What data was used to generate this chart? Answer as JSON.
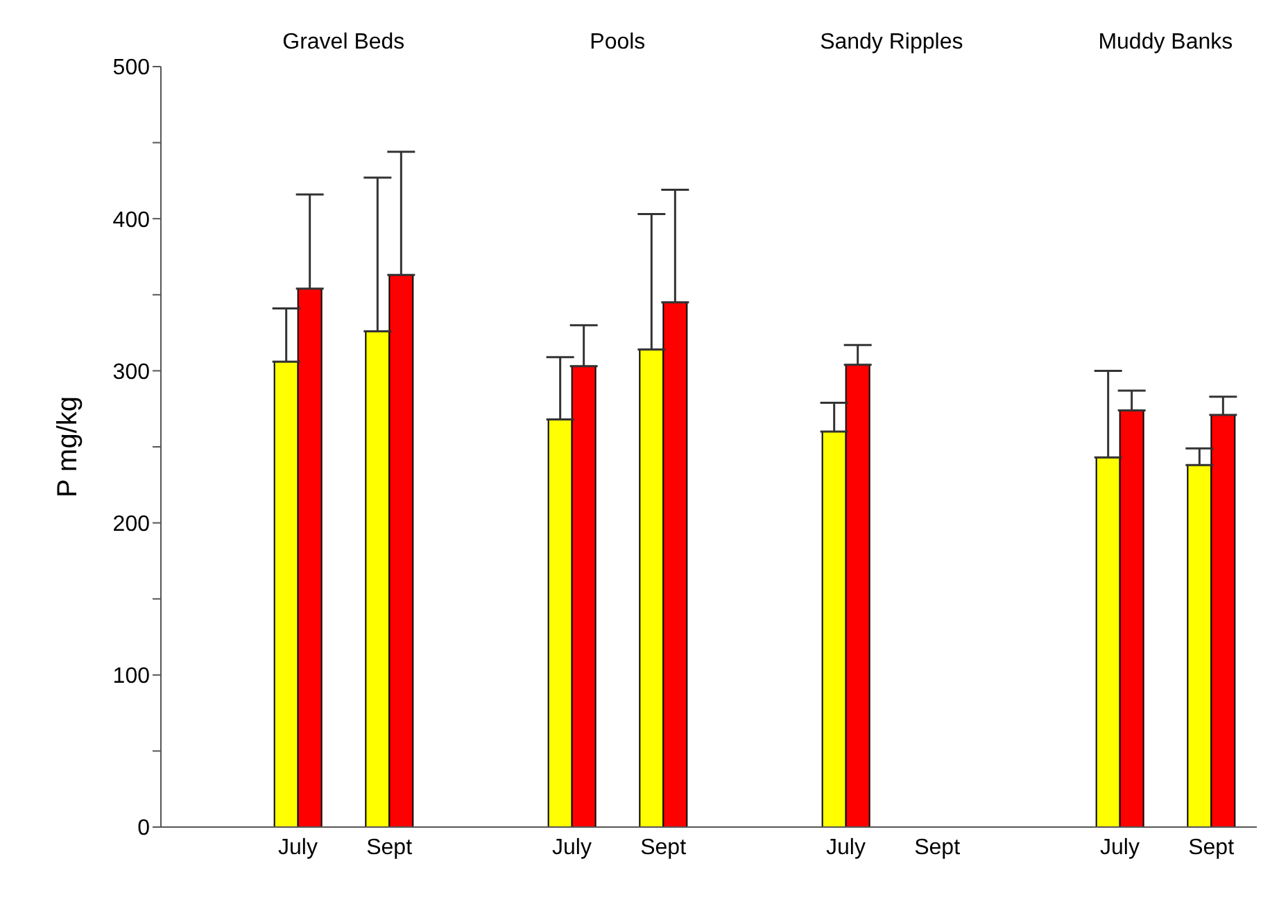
{
  "chart_data": {
    "type": "bar",
    "ylabel": "P mg/kg",
    "categories": [
      null,
      "July",
      "Sept",
      null,
      "July",
      "Sept",
      null,
      "July",
      "Sept",
      null,
      "July",
      "Sept"
    ],
    "series": [
      {
        "color": "#ffff00",
        "values": [
          null,
          306,
          326,
          null,
          268,
          314,
          null,
          260,
          null,
          null,
          243,
          238
        ],
        "errors": [
          null,
          [
            306,
            341
          ],
          [
            326,
            427
          ],
          null,
          [
            268,
            309
          ],
          [
            314,
            403
          ],
          null,
          [
            260,
            279
          ],
          null,
          null,
          [
            243,
            300
          ],
          [
            238,
            249
          ]
        ]
      },
      {
        "color": "#ff0000",
        "values": [
          null,
          354,
          363,
          null,
          303,
          345,
          null,
          304,
          null,
          null,
          274,
          271
        ],
        "errors": [
          null,
          [
            354,
            416
          ],
          [
            363,
            444
          ],
          null,
          [
            303,
            330
          ],
          [
            345,
            419
          ],
          null,
          [
            304,
            317
          ],
          null,
          null,
          [
            274,
            287
          ],
          [
            271,
            283
          ]
        ]
      }
    ],
    "annotations": [
      "Gravel Beds",
      "Pools",
      "Sandy Ripples",
      "Muddy Banks"
    ],
    "ylim": [
      0,
      500
    ],
    "yticks": [
      0,
      {
        "value": 50,
        "label": null
      },
      100,
      {
        "value": 150,
        "label": null
      },
      200,
      {
        "value": 250,
        "label": null
      },
      300,
      {
        "value": 350,
        "label": null
      },
      400,
      {
        "value": 450,
        "label": null
      },
      500
    ],
    "grid": false
  }
}
